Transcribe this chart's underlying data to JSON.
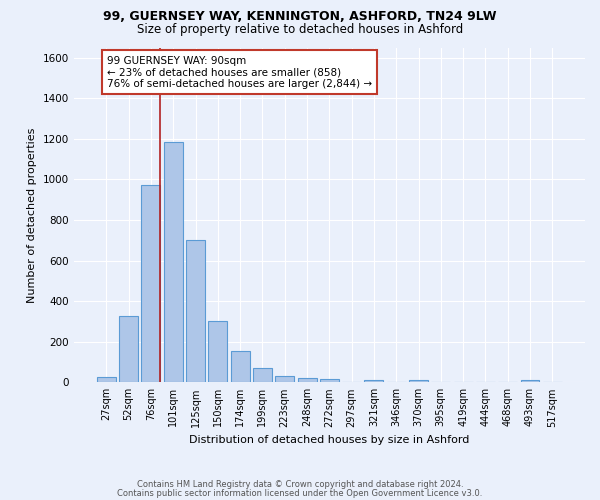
{
  "title1": "99, GUERNSEY WAY, KENNINGTON, ASHFORD, TN24 9LW",
  "title2": "Size of property relative to detached houses in Ashford",
  "xlabel": "Distribution of detached houses by size in Ashford",
  "ylabel": "Number of detached properties",
  "footer1": "Contains HM Land Registry data © Crown copyright and database right 2024.",
  "footer2": "Contains public sector information licensed under the Open Government Licence v3.0.",
  "bin_labels": [
    "27sqm",
    "52sqm",
    "76sqm",
    "101sqm",
    "125sqm",
    "150sqm",
    "174sqm",
    "199sqm",
    "223sqm",
    "248sqm",
    "272sqm",
    "297sqm",
    "321sqm",
    "346sqm",
    "370sqm",
    "395sqm",
    "419sqm",
    "444sqm",
    "468sqm",
    "493sqm",
    "517sqm"
  ],
  "bar_values": [
    25,
    325,
    970,
    1185,
    700,
    300,
    155,
    70,
    30,
    20,
    15,
    0,
    12,
    0,
    10,
    0,
    0,
    0,
    0,
    12,
    0
  ],
  "bar_color": "#aec6e8",
  "bar_edge_color": "#5b9bd5",
  "background_color": "#eaf0fb",
  "grid_color": "#ffffff",
  "vline_color": "#b22222",
  "annotation_text": "99 GUERNSEY WAY: 90sqm\n← 23% of detached houses are smaller (858)\n76% of semi-detached houses are larger (2,844) →",
  "annotation_box_color": "#ffffff",
  "annotation_box_edge": "#c0392b",
  "ylim": [
    0,
    1650
  ],
  "yticks": [
    0,
    200,
    400,
    600,
    800,
    1000,
    1200,
    1400,
    1600
  ]
}
